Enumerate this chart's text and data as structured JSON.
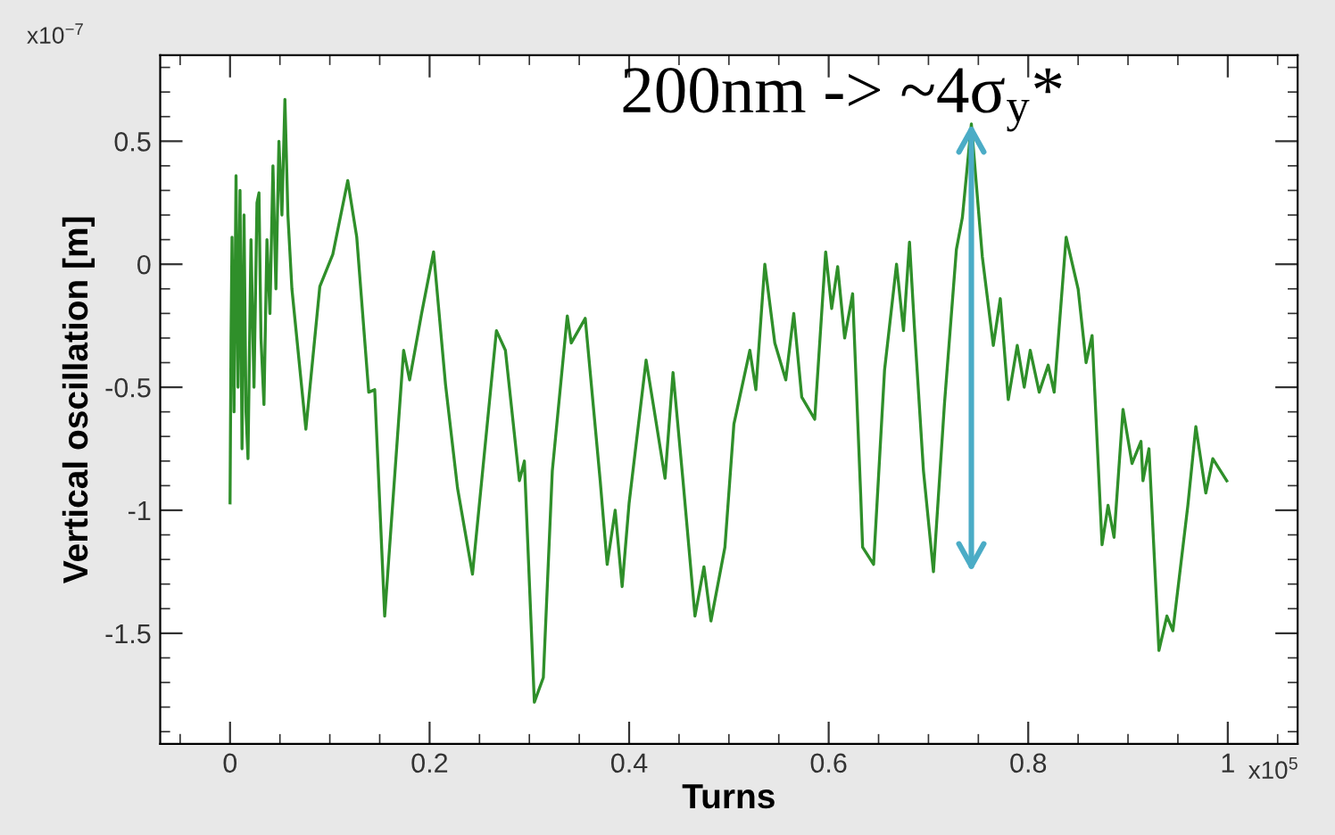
{
  "chart_data": {
    "type": "line",
    "xlabel": "Turns",
    "ylabel": "Vertical oscillation [m]",
    "xlim": [
      -0.07,
      1.07
    ],
    "ylim": [
      -1.95,
      0.85
    ],
    "xticks": [
      0,
      0.2,
      0.4,
      0.6,
      0.8,
      1
    ],
    "yticks": [
      -1.5,
      -1,
      -0.5,
      0,
      0.5
    ],
    "grid": false,
    "legend": false,
    "marker": "none",
    "line_style": "solid",
    "annotations": [
      "200nm -> ~4σ$_{y}$*",
      "x10$^{−7}$",
      "x10$^{5}$"
    ],
    "series": [
      {
        "color": "#2f8f2a",
        "x": [
          0.0,
          0.001,
          0.002,
          0.004,
          0.006,
          0.008,
          0.01,
          0.012,
          0.014,
          0.016,
          0.018,
          0.021,
          0.024,
          0.027,
          0.029,
          0.031,
          0.034,
          0.037,
          0.04,
          0.043,
          0.046,
          0.049,
          0.052,
          0.055,
          0.058,
          0.062,
          0.076,
          0.09,
          0.103,
          0.118,
          0.127,
          0.139,
          0.145,
          0.155,
          0.174,
          0.18,
          0.192,
          0.204,
          0.216,
          0.228,
          0.243,
          0.267,
          0.276,
          0.29,
          0.295,
          0.305,
          0.314,
          0.323,
          0.338,
          0.342,
          0.356,
          0.371,
          0.378,
          0.386,
          0.393,
          0.4,
          0.417,
          0.425,
          0.436,
          0.444,
          0.454,
          0.466,
          0.475,
          0.482,
          0.496,
          0.505,
          0.521,
          0.527,
          0.536,
          0.546,
          0.557,
          0.565,
          0.573,
          0.586,
          0.597,
          0.603,
          0.609,
          0.616,
          0.624,
          0.632,
          0.634,
          0.645,
          0.656,
          0.668,
          0.675,
          0.681,
          0.686,
          0.695,
          0.705,
          0.716,
          0.728,
          0.734,
          0.743,
          0.754,
          0.765,
          0.772,
          0.78,
          0.789,
          0.796,
          0.802,
          0.811,
          0.82,
          0.826,
          0.838,
          0.85,
          0.858,
          0.864,
          0.874,
          0.88,
          0.886,
          0.895,
          0.904,
          0.913,
          0.915,
          0.921,
          0.931,
          0.939,
          0.945,
          0.96,
          0.968,
          0.978,
          0.985,
          0.999
        ],
        "values": [
          -0.97,
          -0.3,
          0.11,
          -0.6,
          0.36,
          -0.5,
          0.3,
          -0.75,
          0.2,
          -0.6,
          -0.79,
          0.1,
          -0.5,
          0.25,
          0.29,
          -0.3,
          -0.57,
          0.1,
          -0.2,
          0.4,
          -0.1,
          0.5,
          0.2,
          0.67,
          0.2,
          -0.1,
          -0.67,
          -0.09,
          0.04,
          0.34,
          0.11,
          -0.52,
          -0.51,
          -1.43,
          -0.35,
          -0.47,
          -0.2,
          0.05,
          -0.49,
          -0.91,
          -1.26,
          -0.27,
          -0.35,
          -0.88,
          -0.8,
          -1.78,
          -1.68,
          -0.84,
          -0.21,
          -0.32,
          -0.22,
          -0.88,
          -1.22,
          -1.0,
          -1.31,
          -0.97,
          -0.39,
          -0.59,
          -0.87,
          -0.44,
          -0.88,
          -1.43,
          -1.23,
          -1.45,
          -1.15,
          -0.65,
          -0.35,
          -0.51,
          0.0,
          -0.32,
          -0.47,
          -0.2,
          -0.54,
          -0.63,
          0.05,
          -0.18,
          -0.01,
          -0.3,
          -0.12,
          -0.93,
          -1.15,
          -1.22,
          -0.43,
          0.0,
          -0.27,
          0.09,
          -0.26,
          -0.84,
          -1.25,
          -0.57,
          0.06,
          0.19,
          0.57,
          0.03,
          -0.33,
          -0.14,
          -0.55,
          -0.33,
          -0.5,
          -0.35,
          -0.52,
          -0.41,
          -0.52,
          0.11,
          -0.1,
          -0.4,
          -0.29,
          -1.14,
          -0.98,
          -1.11,
          -0.59,
          -0.81,
          -0.72,
          -0.88,
          -0.75,
          -1.57,
          -1.43,
          -1.49,
          -0.98,
          -0.66,
          -0.93,
          -0.79,
          -0.88
        ]
      }
    ]
  }
}
